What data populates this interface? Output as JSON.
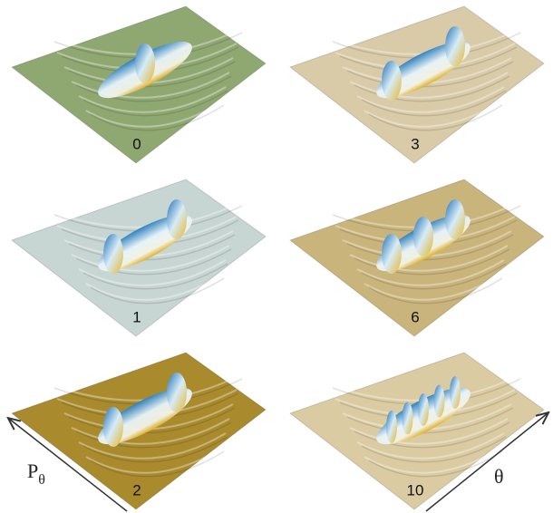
{
  "panels": [
    {
      "label": "0"
    },
    {
      "label": "3"
    },
    {
      "label": "1"
    },
    {
      "label": "6"
    },
    {
      "label": "2"
    },
    {
      "label": "10"
    }
  ],
  "axes": {
    "p_label": "P",
    "p_subscript": "θ",
    "theta_label": "θ"
  }
}
